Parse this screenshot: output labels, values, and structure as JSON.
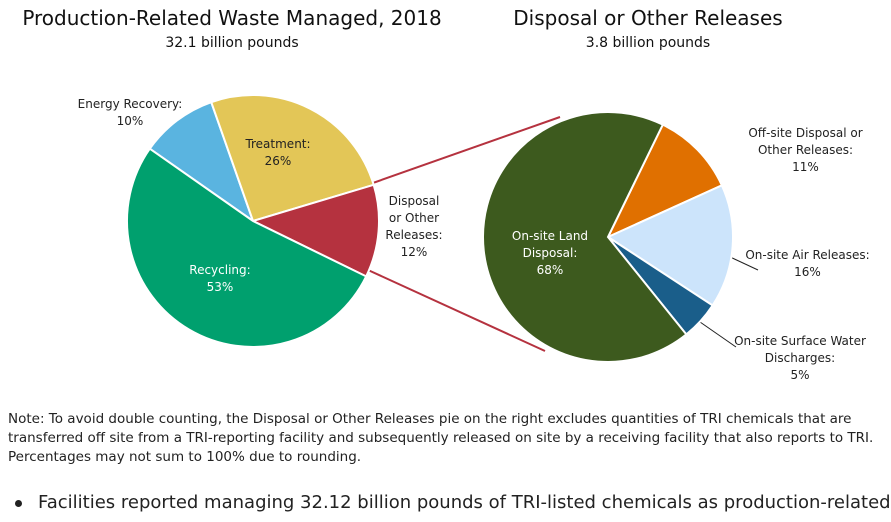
{
  "chart_data": [
    {
      "type": "pie",
      "title": "Production-Related Waste Managed, 2018",
      "subtitle": "32.1 billion pounds",
      "categories": [
        "Energy Recovery:",
        "Treatment:",
        "Disposal or Other Releases:",
        "Recycling:"
      ],
      "values": [
        10,
        26,
        12,
        53
      ],
      "value_labels": [
        "10%",
        "26%",
        "12%",
        "53%"
      ],
      "colors": [
        "#5ab4e0",
        "#e3c657",
        "#b5323f",
        "#00a06e"
      ]
    },
    {
      "type": "pie",
      "title": "Disposal or Other Releases",
      "subtitle": "3.8 billion pounds",
      "categories": [
        "Off-site Disposal or Other Releases:",
        "On-site Air Releases:",
        "On-site Surface Water Discharges:",
        "On-site Land Disposal:"
      ],
      "values": [
        11,
        16,
        5,
        68
      ],
      "value_labels": [
        "11%",
        "16%",
        "5%",
        "68%"
      ],
      "colors": [
        "#e07000",
        "#cce4fb",
        "#1a5e8a",
        "#3d5a1e"
      ]
    }
  ],
  "note": "Note: To avoid double counting, the Disposal or Other Releases pie on the right excludes quantities of TRI chemicals that are transferred off site from a TRI-reporting facility and subsequently released on site by a receiving facility that also reports to TRI. Percentages may not sum to 100% due to rounding.",
  "bullet": "Facilities reported managing 32.12 billion pounds of TRI-listed chemicals as production-related"
}
